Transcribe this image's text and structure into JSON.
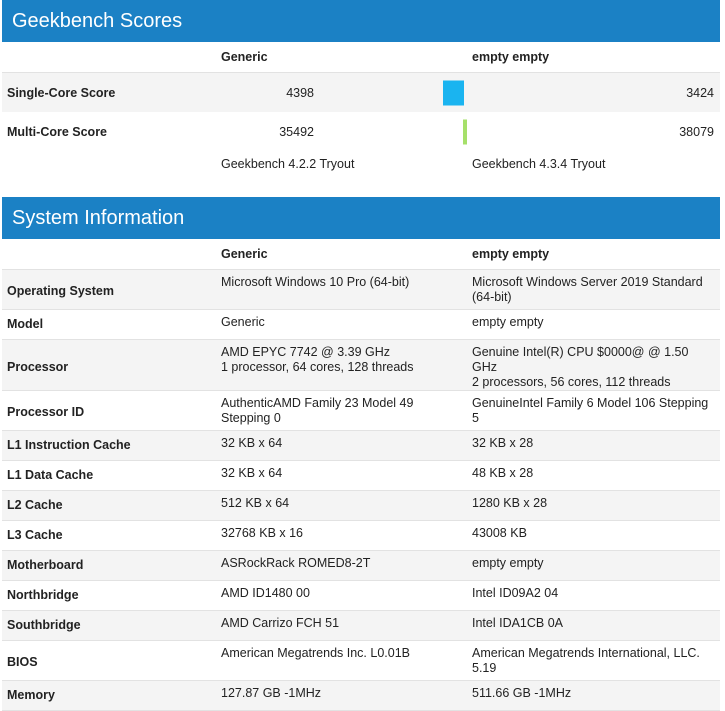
{
  "scores": {
    "title": "Geekbench Scores",
    "col_generic": "Generic",
    "col_empty": "empty empty",
    "rows": [
      {
        "label": "Single-Core Score",
        "generic": "4398",
        "empty": "3424",
        "bar_color": "#1ab4f0"
      },
      {
        "label": "Multi-Core Score",
        "generic": "35492",
        "empty": "38079",
        "bar_color": "#a6e06a"
      }
    ],
    "version_generic": "Geekbench 4.2.2 Tryout",
    "version_empty": "Geekbench 4.3.4 Tryout"
  },
  "system": {
    "title": "System Information",
    "col_generic": "Generic",
    "col_empty": "empty empty",
    "rows": [
      {
        "label": "Operating System",
        "generic": "Microsoft Windows 10 Pro (64-bit)",
        "empty": "Microsoft Windows Server 2019 Standard (64-bit)"
      },
      {
        "label": "Model",
        "generic": "Generic",
        "empty": "empty empty"
      },
      {
        "label": "Processor",
        "generic": "AMD EPYC 7742 @ 3.39 GHz\n1 processor, 64 cores, 128 threads",
        "empty": "Genuine Intel(R) CPU $0000@ @ 1.50 GHz\n2 processors, 56 cores, 112 threads"
      },
      {
        "label": "Processor ID",
        "generic": "AuthenticAMD Family 23 Model 49 Stepping 0",
        "empty": "GenuineIntel Family 6 Model 106 Stepping 5"
      },
      {
        "label": "L1 Instruction Cache",
        "generic": "32 KB x 64",
        "empty": "32 KB x 28"
      },
      {
        "label": "L1 Data Cache",
        "generic": "32 KB x 64",
        "empty": "48 KB x 28"
      },
      {
        "label": "L2 Cache",
        "generic": "512 KB x 64",
        "empty": "1280 KB x 28"
      },
      {
        "label": "L3 Cache",
        "generic": "32768 KB x 16",
        "empty": "43008 KB"
      },
      {
        "label": "Motherboard",
        "generic": "ASRockRack ROMED8-2T",
        "empty": "empty empty"
      },
      {
        "label": "Northbridge",
        "generic": "AMD ID1480 00",
        "empty": "Intel ID09A2 04"
      },
      {
        "label": "Southbridge",
        "generic": "AMD Carrizo FCH 51",
        "empty": "Intel IDA1CB 0A"
      },
      {
        "label": "BIOS",
        "generic": "American Megatrends Inc. L0.01B",
        "empty": "American Megatrends International, LLC. 5.19"
      },
      {
        "label": "Memory",
        "generic": "127.87 GB -1MHz",
        "empty": "511.66 GB -1MHz"
      }
    ]
  }
}
